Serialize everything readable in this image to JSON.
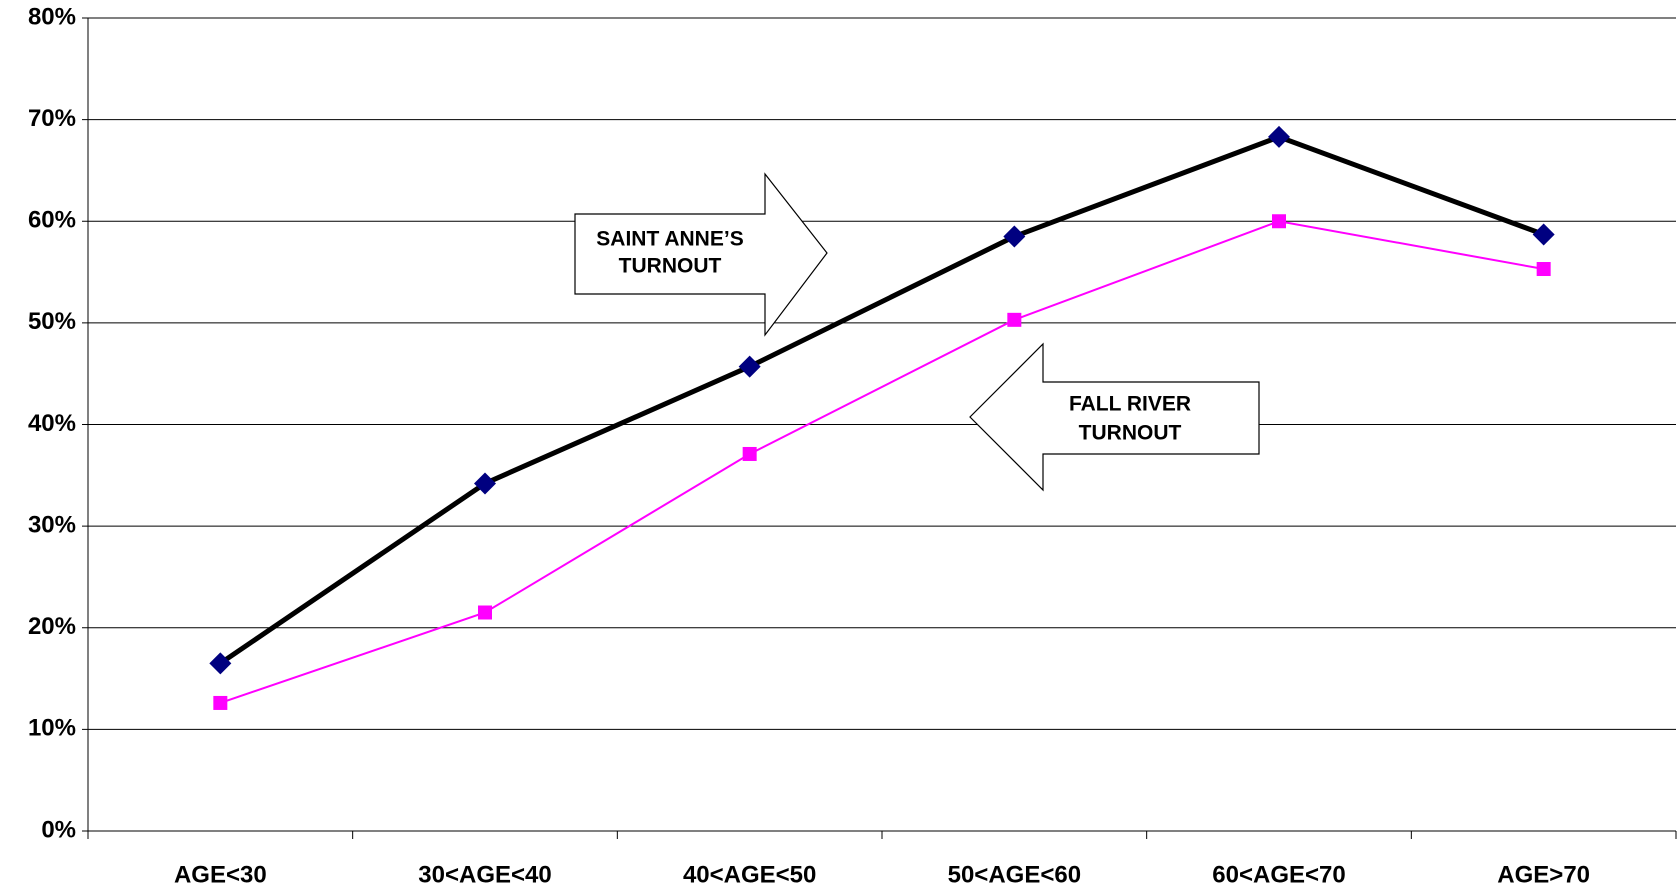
{
  "chart_data": {
    "type": "line",
    "categories": [
      "AGE<30",
      "30<AGE<40",
      "40<AGE<50",
      "50<AGE<60",
      "60<AGE<70",
      "AGE>70"
    ],
    "series": [
      {
        "color": "#000000",
        "marker_color": "#000080",
        "values": [
          16.5,
          34.2,
          45.7,
          58.5,
          68.3,
          58.7
        ]
      },
      {
        "color": "#ff00ff",
        "marker_color": "#ff00ff",
        "values": [
          12.6,
          21.5,
          37.1,
          50.3,
          60,
          55.3
        ]
      }
    ],
    "ylim": [
      0,
      80
    ],
    "yticks": [
      {
        "value": 0,
        "label": "0%"
      },
      {
        "value": 10,
        "label": "10%"
      },
      {
        "value": 20,
        "label": "20%"
      },
      {
        "value": 30,
        "label": "30%"
      },
      {
        "value": 40,
        "label": "40%"
      },
      {
        "value": 50,
        "label": "50%"
      },
      {
        "value": 60,
        "label": "60%"
      },
      {
        "value": 70,
        "label": "70%"
      },
      {
        "value": 80,
        "label": "80%"
      }
    ],
    "grid": true,
    "annotations": [
      {
        "lines": [
          "SAINT ANNE’S",
          "TURNOUT"
        ]
      },
      {
        "lines": [
          "FALL RIVER",
          "TURNOUT"
        ]
      }
    ]
  }
}
